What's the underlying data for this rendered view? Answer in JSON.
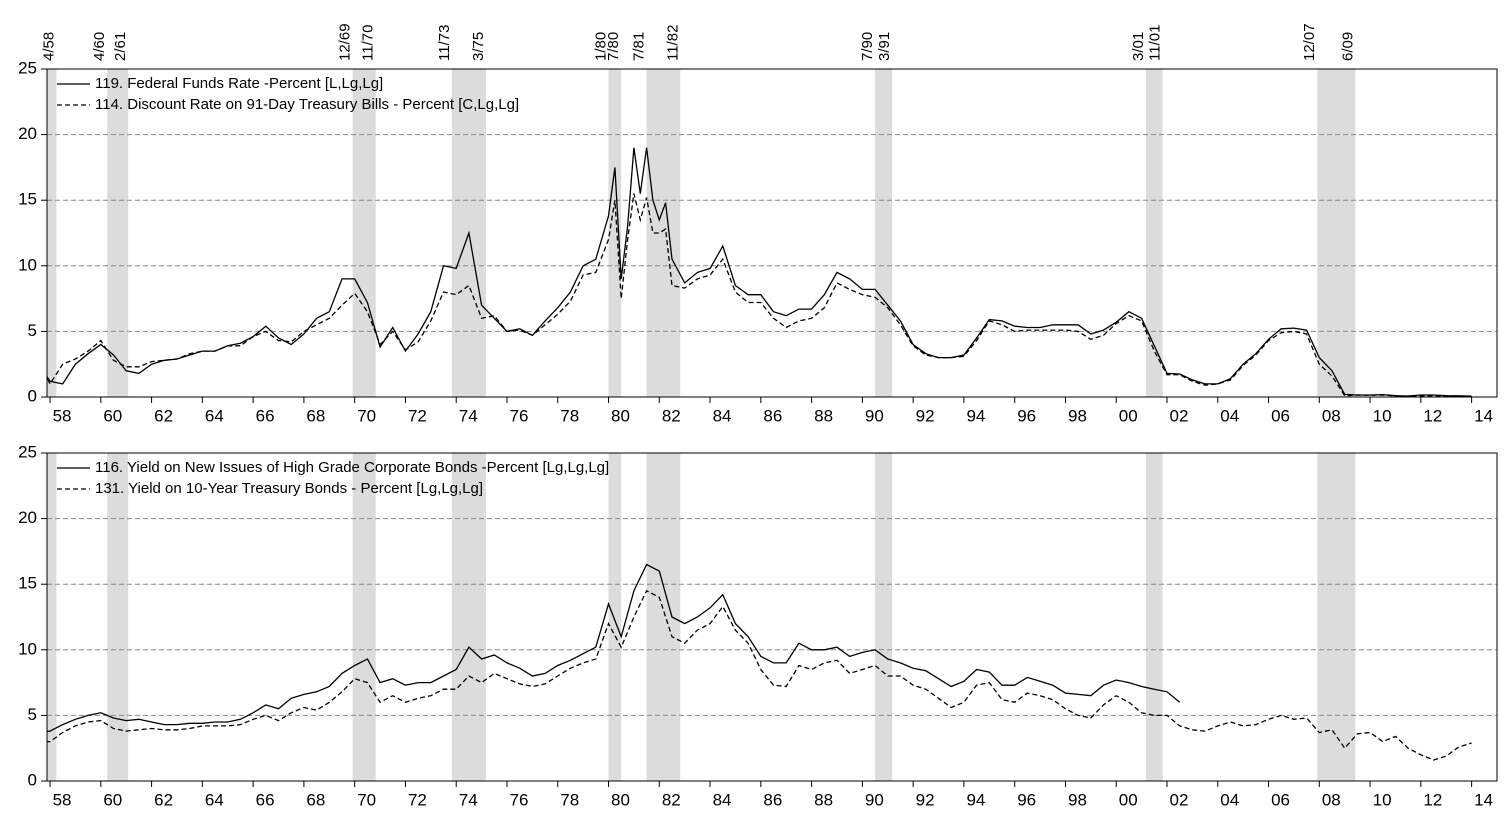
{
  "chart_data": [
    {
      "type": "line",
      "series": [
        {
          "name": "119. Federal Funds Rate -Percent [L,Lg,Lg]",
          "color": "#000000",
          "dash": false,
          "values": [
            2.7,
            1.2,
            1.0,
            2.5,
            3.3,
            4.0,
            3.2,
            2.0,
            1.8,
            2.5,
            2.8,
            2.9,
            3.2,
            3.5,
            3.5,
            3.9,
            4.1,
            4.6,
            5.4,
            4.5,
            4.0,
            4.8,
            6.0,
            6.5,
            9.0,
            9.0,
            7.2,
            3.8,
            5.3,
            3.5,
            4.8,
            6.5,
            10.0,
            9.8,
            12.5,
            7.0,
            6.0,
            5.0,
            5.2,
            4.7,
            5.8,
            6.8,
            8.0,
            10.0,
            10.5,
            13.8,
            17.5,
            9.0,
            13.0,
            19.0,
            15.5,
            19.0,
            15.0,
            13.5,
            14.8,
            10.5,
            8.7,
            9.5,
            9.8,
            11.5,
            8.5,
            7.8,
            7.8,
            6.5,
            6.2,
            6.7,
            6.7,
            7.8,
            9.5,
            9.0,
            8.2,
            8.2,
            7.0,
            5.8,
            4.0,
            3.3,
            3.0,
            3.0,
            3.2,
            4.5,
            5.9,
            5.8,
            5.4,
            5.3,
            5.3,
            5.5,
            5.5,
            5.5,
            4.8,
            5.1,
            5.7,
            6.5,
            6.0,
            3.9,
            1.8,
            1.75,
            1.3,
            1.0,
            1.0,
            1.4,
            2.5,
            3.3,
            4.4,
            5.2,
            5.25,
            5.1,
            3.0,
            2.0,
            0.2,
            0.15,
            0.15,
            0.18,
            0.1,
            0.08,
            0.15,
            0.15,
            0.1,
            0.09,
            0.07
          ]
        },
        {
          "name": "114. Discount Rate on 91-Day Treasury Bills - Percent [C,Lg,Lg]",
          "color": "#000000",
          "dash": true,
          "values": [
            3.0,
            1.0,
            2.5,
            2.9,
            3.5,
            4.3,
            2.8,
            2.3,
            2.3,
            2.7,
            2.8,
            2.9,
            3.3,
            3.5,
            3.5,
            3.9,
            3.9,
            4.6,
            5.0,
            4.3,
            4.2,
            5.0,
            5.5,
            6.0,
            7.0,
            7.9,
            6.5,
            4.0,
            5.0,
            3.6,
            4.2,
            5.8,
            8.0,
            7.8,
            8.5,
            6.0,
            6.2,
            5.0,
            5.1,
            4.7,
            5.5,
            6.3,
            7.3,
            9.3,
            9.5,
            12.0,
            15.0,
            7.5,
            12.0,
            15.5,
            13.5,
            15.2,
            12.5,
            12.5,
            12.8,
            8.5,
            8.3,
            9.0,
            9.3,
            10.5,
            8.0,
            7.2,
            7.2,
            6.0,
            5.3,
            5.8,
            6.0,
            6.8,
            8.7,
            8.2,
            7.8,
            7.6,
            6.8,
            5.5,
            3.9,
            3.2,
            3.0,
            3.0,
            3.1,
            4.3,
            5.8,
            5.5,
            5.0,
            5.1,
            5.1,
            5.1,
            5.1,
            5.0,
            4.4,
            4.7,
            5.6,
            6.2,
            5.8,
            3.5,
            1.7,
            1.7,
            1.2,
            0.9,
            1.0,
            1.3,
            2.4,
            3.2,
            4.3,
            4.9,
            5.0,
            4.8,
            2.5,
            1.6,
            0.1,
            0.15,
            0.14,
            0.15,
            0.08,
            0.05,
            0.08,
            0.1,
            0.07,
            0.04,
            0.03
          ]
        }
      ],
      "x": [
        1957.5,
        1958,
        1958.5,
        1959,
        1959.5,
        1960,
        1960.5,
        1961,
        1961.5,
        1962,
        1962.5,
        1963,
        1963.5,
        1964,
        1964.5,
        1965,
        1965.5,
        1966,
        1966.5,
        1967,
        1967.5,
        1968,
        1968.5,
        1969,
        1969.5,
        1970,
        1970.5,
        1971,
        1971.5,
        1972,
        1972.5,
        1973,
        1973.5,
        1974,
        1974.5,
        1975,
        1975.5,
        1976,
        1976.5,
        1977,
        1977.5,
        1978,
        1978.5,
        1979,
        1979.5,
        1980,
        1980.25,
        1980.5,
        1980.75,
        1981,
        1981.25,
        1981.5,
        1981.75,
        1982,
        1982.25,
        1982.5,
        1983,
        1983.5,
        1984,
        1984.5,
        1985,
        1985.5,
        1986,
        1986.5,
        1987,
        1987.5,
        1988,
        1988.5,
        1989,
        1989.5,
        1990,
        1990.5,
        1991,
        1991.5,
        1992,
        1992.5,
        1993,
        1993.5,
        1994,
        1994.5,
        1995,
        1995.5,
        1996,
        1996.5,
        1997,
        1997.5,
        1998,
        1998.5,
        1999,
        1999.5,
        2000,
        2000.5,
        2001,
        2001.5,
        2002,
        2002.5,
        2003,
        2003.5,
        2004,
        2004.5,
        2005,
        2005.5,
        2006,
        2006.5,
        2007,
        2007.5,
        2008,
        2008.5,
        2009,
        2009.5,
        2010,
        2010.5,
        2011,
        2011.5,
        2012,
        2012.5,
        2013,
        2013.5,
        2014
      ],
      "xlim": [
        1957.88,
        2015
      ],
      "xticks": [
        {
          "value": 1958,
          "label": "58"
        },
        {
          "value": 1960,
          "label": "60"
        },
        {
          "value": 1962,
          "label": "62"
        },
        {
          "value": 1964,
          "label": "64"
        },
        {
          "value": 1966,
          "label": "66"
        },
        {
          "value": 1968,
          "label": "68"
        },
        {
          "value": 1970,
          "label": "70"
        },
        {
          "value": 1972,
          "label": "72"
        },
        {
          "value": 1974,
          "label": "74"
        },
        {
          "value": 1976,
          "label": "76"
        },
        {
          "value": 1978,
          "label": "78"
        },
        {
          "value": 1980,
          "label": "80"
        },
        {
          "value": 1982,
          "label": "82"
        },
        {
          "value": 1984,
          "label": "84"
        },
        {
          "value": 1986,
          "label": "86"
        },
        {
          "value": 1988,
          "label": "88"
        },
        {
          "value": 1990,
          "label": "90"
        },
        {
          "value": 1992,
          "label": "92"
        },
        {
          "value": 1994,
          "label": "94"
        },
        {
          "value": 1996,
          "label": "96"
        },
        {
          "value": 1998,
          "label": "98"
        },
        {
          "value": 2000,
          "label": "00"
        },
        {
          "value": 2002,
          "label": "02"
        },
        {
          "value": 2004,
          "label": "04"
        },
        {
          "value": 2006,
          "label": "06"
        },
        {
          "value": 2008,
          "label": "08"
        },
        {
          "value": 2010,
          "label": "10"
        },
        {
          "value": 2012,
          "label": "12"
        },
        {
          "value": 2014,
          "label": "14"
        }
      ],
      "ylim": [
        0,
        25
      ],
      "yticks": [
        0,
        5,
        10,
        15,
        20,
        25
      ],
      "grid": true,
      "legend": "upper left",
      "recessions": [
        {
          "start": 1957.58,
          "end": 1958.25,
          "end_label": "4/58"
        },
        {
          "start": 1960.25,
          "end": 1961.08,
          "start_label": "4/60",
          "end_label": "2/61"
        },
        {
          "start": 1969.92,
          "end": 1970.83,
          "start_label": "12/69",
          "end_label": "11/70"
        },
        {
          "start": 1973.83,
          "end": 1975.17,
          "start_label": "11/73",
          "end_label": "3/75"
        },
        {
          "start": 1980.0,
          "end": 1980.5,
          "start_label": "1/80",
          "end_label": "7/80"
        },
        {
          "start": 1981.5,
          "end": 1982.83,
          "start_label": "7/81",
          "end_label": "11/82"
        },
        {
          "start": 1990.5,
          "end": 1991.17,
          "start_label": "7/90",
          "end_label": "3/91"
        },
        {
          "start": 2001.17,
          "end": 2001.83,
          "start_label": "3/01",
          "end_label": "11/01"
        },
        {
          "start": 2007.92,
          "end": 2009.42,
          "start_label": "12/07",
          "end_label": "6/09"
        }
      ]
    },
    {
      "type": "line",
      "series": [
        {
          "name": "116. Yield on New Issues of High Grade Corporate Bonds -Percent [Lg,Lg,Lg]",
          "color": "#000000",
          "dash": false,
          "values": [
            3.7,
            3.8,
            4.3,
            4.7,
            5.0,
            5.2,
            4.8,
            4.6,
            4.7,
            4.5,
            4.3,
            4.3,
            4.4,
            4.4,
            4.5,
            4.5,
            4.7,
            5.2,
            5.8,
            5.5,
            6.3,
            6.6,
            6.8,
            7.2,
            8.2,
            8.8,
            9.3,
            7.5,
            7.8,
            7.3,
            7.5,
            7.5,
            8.0,
            8.5,
            10.2,
            9.3,
            9.6,
            9.0,
            8.6,
            8.0,
            8.2,
            8.8,
            9.2,
            9.7,
            10.2,
            13.5,
            11.0,
            14.5,
            16.5,
            16.0,
            12.5,
            12.0,
            12.5,
            13.2,
            14.2,
            12.0,
            11.0,
            9.5,
            9.0,
            9.0,
            10.5,
            10.0,
            10.0,
            10.2,
            9.5,
            9.8,
            10.0,
            9.3,
            9.0,
            8.6,
            8.4,
            7.8,
            7.2,
            7.6,
            8.5,
            8.3,
            7.3,
            7.3,
            7.9,
            7.6,
            7.3,
            6.7,
            6.6,
            6.5,
            7.3,
            7.7,
            7.5,
            7.2,
            7.0,
            6.8,
            6.0,
            null,
            null,
            null,
            null,
            null,
            null,
            null,
            null,
            null,
            null,
            null,
            null,
            null,
            null,
            null,
            null,
            null,
            null,
            null,
            null,
            null,
            null,
            null
          ]
        },
        {
          "name": "131. Yield on 10-Year Treasury Bonds - Percent [Lg,Lg,Lg]",
          "color": "#000000",
          "dash": true,
          "values": [
            3.0,
            3.0,
            3.7,
            4.2,
            4.5,
            4.6,
            4.0,
            3.8,
            3.9,
            4.0,
            3.9,
            3.9,
            4.0,
            4.2,
            4.2,
            4.2,
            4.3,
            4.7,
            5.0,
            4.6,
            5.2,
            5.6,
            5.4,
            6.0,
            6.8,
            7.8,
            7.5,
            6.0,
            6.5,
            6.0,
            6.3,
            6.5,
            7.0,
            7.0,
            8.0,
            7.5,
            8.2,
            7.8,
            7.4,
            7.2,
            7.4,
            8.0,
            8.6,
            9.0,
            9.3,
            12.0,
            10.2,
            12.5,
            14.5,
            14.0,
            11.0,
            10.5,
            11.5,
            12.0,
            13.3,
            11.5,
            10.5,
            8.5,
            7.3,
            7.2,
            8.8,
            8.5,
            9.0,
            9.2,
            8.2,
            8.5,
            8.8,
            8.0,
            8.0,
            7.3,
            7.0,
            6.3,
            5.6,
            6.0,
            7.3,
            7.5,
            6.2,
            6.0,
            6.7,
            6.5,
            6.2,
            5.5,
            5.0,
            4.8,
            5.8,
            6.5,
            6.0,
            5.2,
            5.0,
            5.0,
            4.2,
            3.9,
            3.8,
            4.2,
            4.5,
            4.2,
            4.3,
            4.7,
            5.0,
            4.7,
            4.8,
            3.7,
            3.9,
            2.5,
            3.6,
            3.7,
            3.0,
            3.4,
            2.5,
            2.0,
            1.6,
            1.9,
            2.6,
            2.9
          ]
        }
      ],
      "x": [
        1957.5,
        1958,
        1958.5,
        1959,
        1959.5,
        1960,
        1960.5,
        1961,
        1961.5,
        1962,
        1962.5,
        1963,
        1963.5,
        1964,
        1964.5,
        1965,
        1965.5,
        1966,
        1966.5,
        1967,
        1967.5,
        1968,
        1968.5,
        1969,
        1969.5,
        1970,
        1970.5,
        1971,
        1971.5,
        1972,
        1972.5,
        1973,
        1973.5,
        1974,
        1974.5,
        1975,
        1975.5,
        1976,
        1976.5,
        1977,
        1977.5,
        1978,
        1978.5,
        1979,
        1979.5,
        1980,
        1980.5,
        1981,
        1981.5,
        1982,
        1982.5,
        1983,
        1983.5,
        1984,
        1984.5,
        1985,
        1985.5,
        1986,
        1986.5,
        1987,
        1987.5,
        1988,
        1988.5,
        1989,
        1989.5,
        1990,
        1990.5,
        1991,
        1991.5,
        1992,
        1992.5,
        1993,
        1993.5,
        1994,
        1994.5,
        1995,
        1995.5,
        1996,
        1996.5,
        1997,
        1997.5,
        1998,
        1998.5,
        1999,
        1999.5,
        2000,
        2000.5,
        2001,
        2001.5,
        2002,
        2002.5,
        2003,
        2003.5,
        2004,
        2004.5,
        2005,
        2005.5,
        2006,
        2006.5,
        2007,
        2007.5,
        2008,
        2008.5,
        2009,
        2009.5,
        2010,
        2010.5,
        2011,
        2011.5,
        2012,
        2012.5,
        2013,
        2013.5,
        2014
      ],
      "xlim": [
        1957.88,
        2015
      ],
      "xticks": [
        {
          "value": 1958,
          "label": "58"
        },
        {
          "value": 1960,
          "label": "60"
        },
        {
          "value": 1962,
          "label": "62"
        },
        {
          "value": 1964,
          "label": "64"
        },
        {
          "value": 1966,
          "label": "66"
        },
        {
          "value": 1968,
          "label": "68"
        },
        {
          "value": 1970,
          "label": "70"
        },
        {
          "value": 1972,
          "label": "72"
        },
        {
          "value": 1974,
          "label": "74"
        },
        {
          "value": 1976,
          "label": "76"
        },
        {
          "value": 1978,
          "label": "78"
        },
        {
          "value": 1980,
          "label": "80"
        },
        {
          "value": 1982,
          "label": "82"
        },
        {
          "value": 1984,
          "label": "84"
        },
        {
          "value": 1986,
          "label": "86"
        },
        {
          "value": 1988,
          "label": "88"
        },
        {
          "value": 1990,
          "label": "90"
        },
        {
          "value": 1992,
          "label": "92"
        },
        {
          "value": 1994,
          "label": "94"
        },
        {
          "value": 1996,
          "label": "96"
        },
        {
          "value": 1998,
          "label": "98"
        },
        {
          "value": 2000,
          "label": "00"
        },
        {
          "value": 2002,
          "label": "02"
        },
        {
          "value": 2004,
          "label": "04"
        },
        {
          "value": 2006,
          "label": "06"
        },
        {
          "value": 2008,
          "label": "08"
        },
        {
          "value": 2010,
          "label": "10"
        },
        {
          "value": 2012,
          "label": "12"
        },
        {
          "value": 2014,
          "label": "14"
        }
      ],
      "ylim": [
        0,
        25
      ],
      "yticks": [
        0,
        5,
        10,
        15,
        20,
        25
      ],
      "grid": true,
      "legend": "upper left",
      "recessions": [
        {
          "start": 1957.58,
          "end": 1958.25
        },
        {
          "start": 1960.25,
          "end": 1961.08
        },
        {
          "start": 1969.92,
          "end": 1970.83
        },
        {
          "start": 1973.83,
          "end": 1975.17
        },
        {
          "start": 1980.0,
          "end": 1980.5
        },
        {
          "start": 1981.5,
          "end": 1982.83
        },
        {
          "start": 1990.5,
          "end": 1991.17
        },
        {
          "start": 2001.17,
          "end": 2001.83
        },
        {
          "start": 2007.92,
          "end": 2009.42
        }
      ]
    }
  ]
}
